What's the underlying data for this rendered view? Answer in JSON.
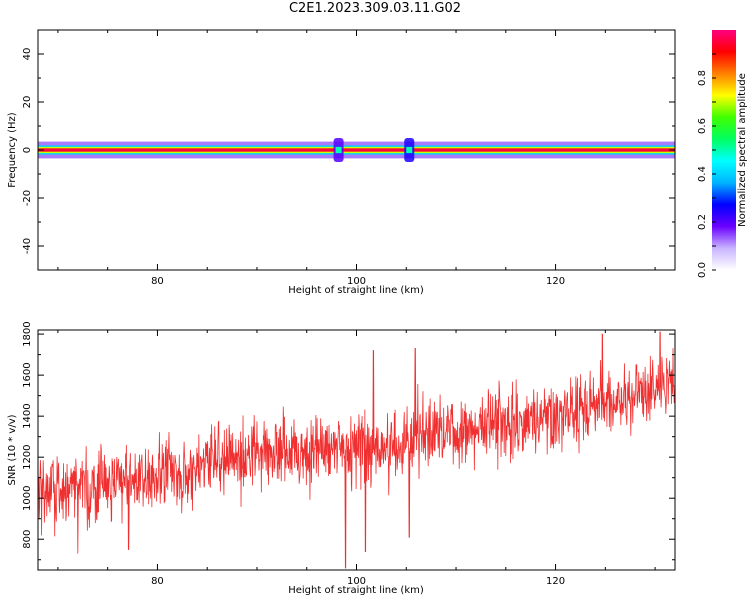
{
  "figure": {
    "title": "C2E1.2023.309.03.11.G02"
  },
  "chart_data": [
    {
      "type": "heatmap",
      "xlabel": "Height of straight line (km)",
      "ylabel": "Frequency (Hz)",
      "xlim": [
        68,
        132
      ],
      "ylim": [
        -50,
        50
      ],
      "x_ticks": [
        80,
        100,
        120
      ],
      "y_ticks": [
        40,
        20,
        0,
        -20,
        -40
      ],
      "description_bands": [
        {
          "freq_from": -0.7,
          "freq_to": 0.7,
          "amplitude": 0.95
        },
        {
          "freq_from": -1.3,
          "freq_to": 1.3,
          "amplitude": 0.7
        },
        {
          "freq_from": -1.9,
          "freq_to": 1.9,
          "amplitude": 0.4
        },
        {
          "freq_from": -3.5,
          "freq_to": 3.5,
          "amplitude": 0.12
        }
      ],
      "anomalies": [
        {
          "height": 98.2,
          "freq_half_width": 5,
          "amplitude": 0.2
        },
        {
          "height": 105.3,
          "freq_half_width": 5,
          "amplitude": 0.25
        }
      ],
      "colorbar": {
        "label": "Normalized spectral amplitude",
        "range": [
          0,
          1
        ],
        "ticks": [
          0.0,
          0.2,
          0.4,
          0.6,
          0.8
        ],
        "colors": [
          "#ffffff",
          "#c8b4ff",
          "#6a00ff",
          "#0000ff",
          "#00b4ff",
          "#00ffff",
          "#00ff60",
          "#40ff00",
          "#ffff00",
          "#ff8000",
          "#ff0000",
          "#ff0080"
        ]
      }
    },
    {
      "type": "line",
      "xlabel": "Height of straight line (km)",
      "ylabel": "SNR (10 * v/v)",
      "xlim": [
        68,
        132
      ],
      "ylim": [
        650,
        1820
      ],
      "x_ticks": [
        80,
        100,
        120
      ],
      "y_ticks": [
        800,
        1000,
        1200,
        1400,
        1600,
        1800
      ],
      "color": "#f03030",
      "trend": [
        {
          "x": 68,
          "y": 1020
        },
        {
          "x": 80,
          "y": 1110
        },
        {
          "x": 90,
          "y": 1210
        },
        {
          "x": 100,
          "y": 1240
        },
        {
          "x": 105.5,
          "y": 1230
        },
        {
          "x": 106,
          "y": 1320
        },
        {
          "x": 115,
          "y": 1360
        },
        {
          "x": 125,
          "y": 1460
        },
        {
          "x": 132,
          "y": 1560
        }
      ],
      "noise_amplitude": 120,
      "sample_count": 1600,
      "dips": [
        {
          "x": 72.0,
          "y": 730
        },
        {
          "x": 77.1,
          "y": 750
        },
        {
          "x": 98.9,
          "y": 660
        },
        {
          "x": 100.9,
          "y": 740
        },
        {
          "x": 105.3,
          "y": 810
        }
      ],
      "peaks": [
        {
          "x": 101.7,
          "y": 1720
        },
        {
          "x": 105.9,
          "y": 1730
        },
        {
          "x": 124.7,
          "y": 1800
        },
        {
          "x": 130.5,
          "y": 1810
        }
      ]
    }
  ]
}
